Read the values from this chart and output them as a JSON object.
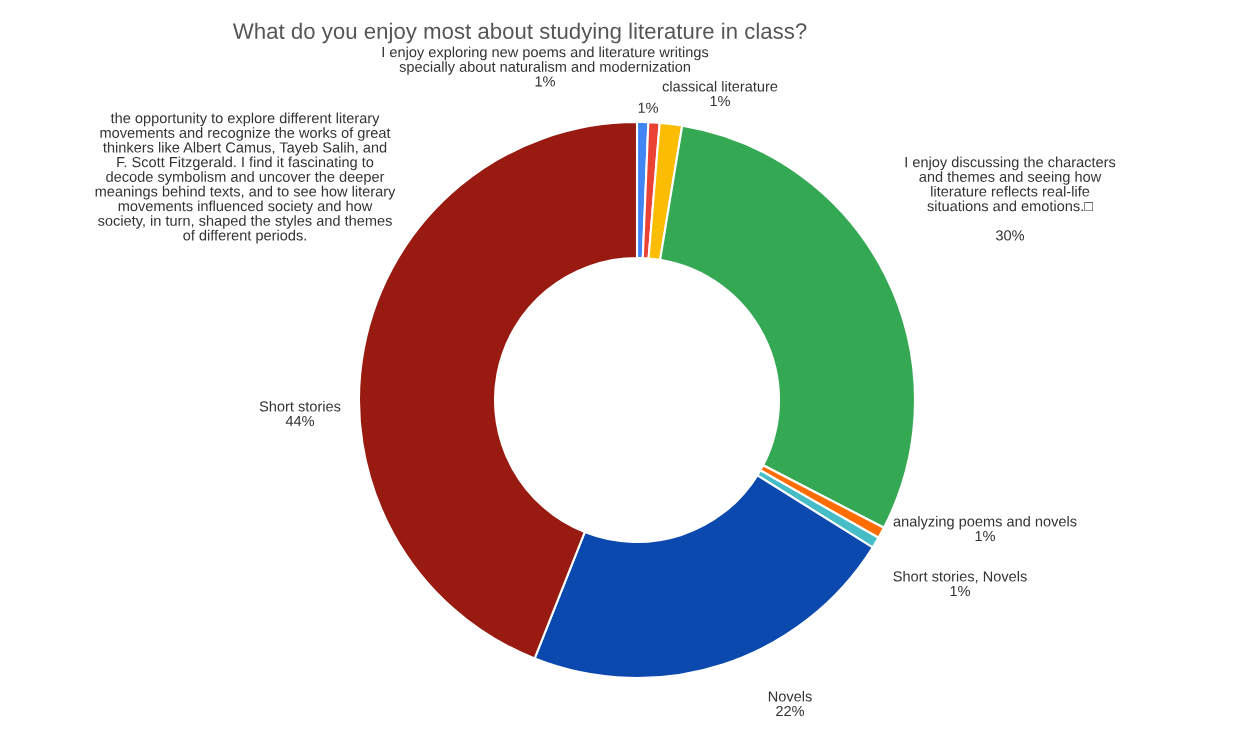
{
  "chart_data": {
    "type": "donut",
    "title": "What do you enjoy most about studying literature in class?",
    "categories": [
      "I enjoy exploring new poems and literature writings\nspecially about naturalism and modernization",
      "the opportunity to explore different literary\nmovements and recognize the works of great\nthinkers like Albert Camus, Tayeb Salih, and\nF. Scott Fitzgerald. I find it fascinating to\ndecode symbolism and uncover the deeper\nmeanings behind texts, and to see how literary\nmovements influenced society and how\nsociety, in turn, shaped the styles and themes\nof different periods.",
      "classical literature",
      "I enjoy discussing the characters\nand themes and seeing how\nliterature reflects real-life\nsituations and emotions.□\n",
      "analyzing poems and novels",
      "Short stories, Novels",
      "Novels",
      "Short stories"
    ],
    "values": [
      0.65,
      0.65,
      1.3,
      30,
      0.65,
      0.65,
      22.1,
      44
    ],
    "value_labels": [
      "1%",
      "1%",
      "1%",
      "30%",
      "1%",
      "1%",
      "22%",
      "44%"
    ],
    "colors": [
      "#4285f4",
      "#ea4335",
      "#fbbc04",
      "#34a853",
      "#ff6d01",
      "#46bdc6",
      "#0b49ae",
      "#981a10"
    ]
  }
}
